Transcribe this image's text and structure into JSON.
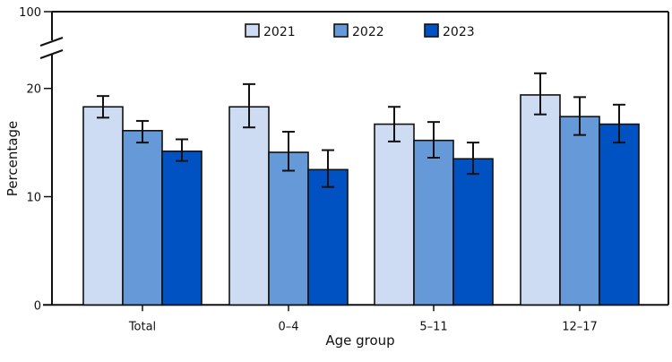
{
  "chart_data": {
    "type": "bar",
    "xlabel": "Age group",
    "ylabel": "Percentage",
    "categories": [
      "Total",
      "0–4",
      "5–11",
      "12–17"
    ],
    "y_ticks": [
      0,
      10,
      20,
      100
    ],
    "y_ticks_labels": [
      "0",
      "10",
      "20",
      "100"
    ],
    "ylim": [
      0,
      100
    ],
    "axis_break": [
      22,
      100
    ],
    "grid": false,
    "legend_position": "top",
    "error_bars": true,
    "series": [
      {
        "name": "2021",
        "color": "#cddcf2",
        "values": [
          18.3,
          18.3,
          16.7,
          19.4
        ],
        "lower": [
          17.3,
          16.4,
          15.1,
          17.6
        ],
        "upper": [
          19.3,
          20.4,
          18.3,
          21.4
        ]
      },
      {
        "name": "2022",
        "color": "#6699d8",
        "values": [
          16.1,
          14.1,
          15.2,
          17.4
        ],
        "lower": [
          15.0,
          12.4,
          13.6,
          15.7
        ],
        "upper": [
          17.0,
          16.0,
          16.9,
          19.2
        ]
      },
      {
        "name": "2023",
        "color": "#0052c2",
        "values": [
          14.2,
          12.5,
          13.5,
          16.7
        ],
        "lower": [
          13.3,
          10.9,
          12.1,
          15.0
        ],
        "upper": [
          15.3,
          14.3,
          15.0,
          18.5
        ]
      }
    ]
  }
}
